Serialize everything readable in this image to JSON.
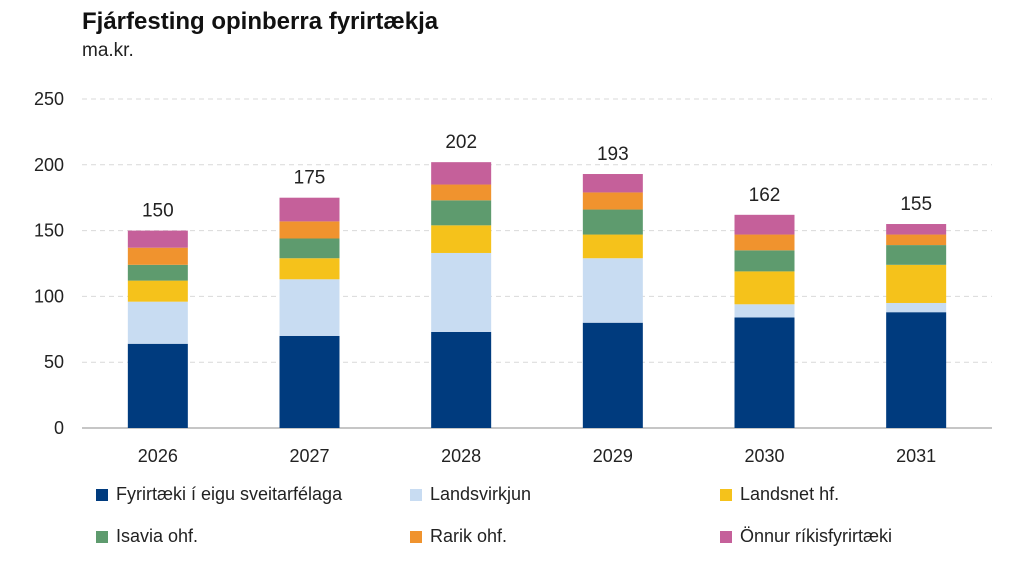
{
  "chart_data": {
    "type": "bar",
    "stacked": true,
    "title": "Fjárfesting opinberra fyrirtækja",
    "subtitle": "ma.kr.",
    "categories": [
      "2026",
      "2027",
      "2028",
      "2029",
      "2030",
      "2031"
    ],
    "ylim": [
      0,
      250
    ],
    "yticks": [
      "0",
      "50",
      "100",
      "150",
      "200",
      "250"
    ],
    "grid": true,
    "legend_position": "bottom",
    "totals": [
      "150",
      "175",
      "202",
      "193",
      "162",
      "155"
    ],
    "series": [
      {
        "name": "Fyrirtæki í eigu sveitarfélaga",
        "color": "#003B7E",
        "values": [
          64,
          70,
          73,
          80,
          84,
          88
        ]
      },
      {
        "name": "Landsvirkjun",
        "color": "#C8DCF2",
        "values": [
          32,
          43,
          60,
          49,
          10,
          7
        ]
      },
      {
        "name": "Landsnet hf.",
        "color": "#F5C21B",
        "values": [
          16,
          16,
          21,
          18,
          25,
          29
        ]
      },
      {
        "name": "Isavia ohf.",
        "color": "#5E9B6E",
        "values": [
          12,
          15,
          19,
          19,
          16,
          15
        ]
      },
      {
        "name": "Rarik ohf.",
        "color": "#F0932E",
        "values": [
          13,
          13,
          12,
          13,
          12,
          8
        ]
      },
      {
        "name": "Önnur ríkisfyrirtæki",
        "color": "#C5609A",
        "values": [
          13,
          18,
          17,
          14,
          15,
          8
        ]
      }
    ]
  }
}
